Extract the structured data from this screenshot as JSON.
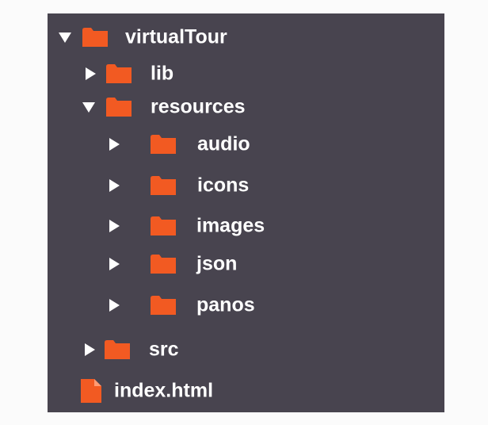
{
  "colors": {
    "panel_background": "#48444f",
    "folder_color": "#f25a22",
    "text_color": "#ffffff",
    "page_background": "#fbfbfb"
  },
  "tree": {
    "root": {
      "label": "virtualTour",
      "state": "expanded",
      "icon": "folder-icon"
    },
    "lib": {
      "label": "lib",
      "state": "collapsed",
      "icon": "folder-icon"
    },
    "resources": {
      "label": "resources",
      "state": "expanded",
      "icon": "folder-icon",
      "children": {
        "audio": {
          "label": "audio",
          "state": "collapsed",
          "icon": "folder-icon"
        },
        "icons": {
          "label": "icons",
          "state": "collapsed",
          "icon": "folder-icon"
        },
        "images": {
          "label": "images",
          "state": "collapsed",
          "icon": "folder-icon"
        },
        "json": {
          "label": "json",
          "state": "collapsed",
          "icon": "folder-icon"
        },
        "panos": {
          "label": "panos",
          "state": "collapsed",
          "icon": "folder-icon"
        }
      }
    },
    "src": {
      "label": "src",
      "state": "collapsed",
      "icon": "folder-icon"
    },
    "index": {
      "label": "index.html",
      "icon": "file-icon"
    }
  }
}
